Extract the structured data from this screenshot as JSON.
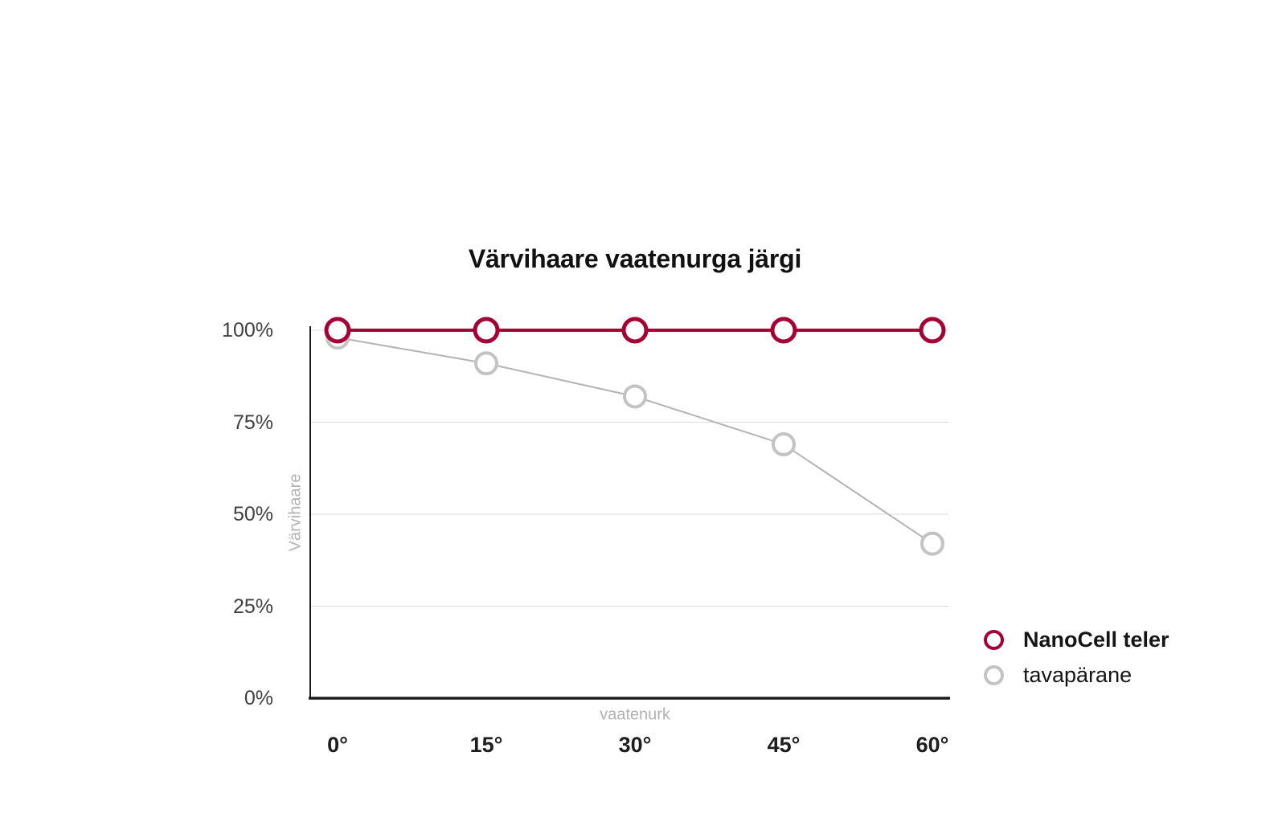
{
  "page": {
    "background": "#ffffff"
  },
  "chart_data": {
    "type": "line",
    "title": "Värvihaare vaatenurga järgi",
    "xlabel": "vaatenurk",
    "ylabel": "Värvihaare",
    "categories": [
      "0°",
      "15°",
      "30°",
      "45°",
      "60°"
    ],
    "yticks": [
      "0%",
      "25%",
      "50%",
      "75%",
      "100%"
    ],
    "ylim": [
      0,
      100
    ],
    "grid": "horizontal-lines",
    "grid_color": "#dcdcdc",
    "axis_color": "#1b1b1b",
    "tick_label_color": "#3f3f3f",
    "axis_title_color": "#b2b2b2",
    "legend_position": "right-bottom",
    "series": [
      {
        "name": "NanoCell teler",
        "values": [
          100,
          100,
          100,
          100,
          100
        ],
        "color": "#a50034",
        "line_width": 4,
        "marker_radius": 14,
        "marker_stroke": 5,
        "legend_bold": true
      },
      {
        "name": "tavapärane",
        "values": [
          98,
          91,
          82,
          69,
          42
        ],
        "color": "#c3c3c3",
        "line_color": "#b3b3b3",
        "line_width": 2,
        "marker_radius": 13,
        "marker_stroke": 4,
        "legend_bold": false
      }
    ]
  }
}
